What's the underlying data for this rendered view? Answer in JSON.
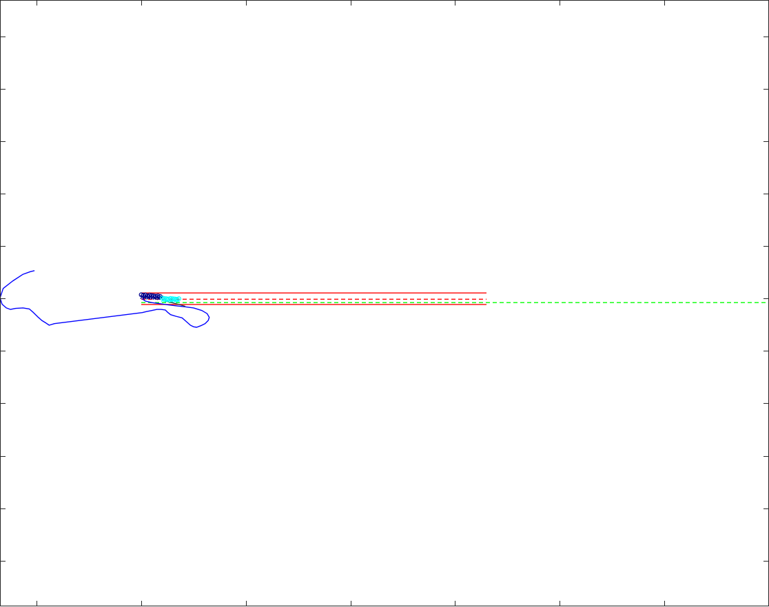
{
  "chart_data": {
    "type": "line",
    "title": "",
    "xlabel": "",
    "ylabel": "",
    "xlim": [
      0,
      7.35
    ],
    "ylim": [
      0,
      11.56
    ],
    "grid": false,
    "x_ticks": [
      0.35,
      1.35,
      2.35,
      3.35,
      4.35,
      5.35,
      6.35
    ],
    "y_ticks": [
      0.87,
      1.87,
      2.87,
      3.87,
      4.87,
      5.87,
      6.87,
      7.87,
      8.87,
      9.87,
      10.87
    ],
    "series": [
      {
        "style": "solid",
        "color": "#ff0000",
        "x": [
          1.35,
          4.65
        ],
        "y": [
          5.975,
          5.975
        ]
      },
      {
        "style": "solid",
        "color": "#ff0000",
        "x": [
          1.35,
          4.65
        ],
        "y": [
          5.755,
          5.755
        ]
      },
      {
        "style": "dashed",
        "color": "#ff0000",
        "x": [
          1.35,
          4.65
        ],
        "y": [
          5.855,
          5.855
        ]
      },
      {
        "style": "dashed",
        "color": "#00ff00",
        "x": [
          1.35,
          7.35
        ],
        "y": [
          5.79,
          5.79
        ]
      },
      {
        "style": "solid",
        "color": "#0000ff",
        "x": [
          0.33,
          0.29,
          0.22,
          0.12,
          0.03,
          0.0,
          0.02,
          0.06,
          0.1,
          0.15,
          0.22,
          0.28,
          0.32,
          0.36,
          0.4,
          0.44,
          0.47,
          0.52,
          1.36,
          1.4,
          1.45,
          1.5,
          1.54,
          1.58,
          1.6,
          1.63,
          1.68,
          1.74,
          1.78,
          1.82,
          1.85,
          1.88,
          1.92,
          1.96,
          1.99,
          2.0,
          1.98,
          1.93,
          1.85,
          1.77,
          1.68,
          1.6,
          1.53,
          1.45,
          1.39,
          1.36
        ],
        "y": [
          6.4,
          6.38,
          6.33,
          6.2,
          6.06,
          5.88,
          5.76,
          5.69,
          5.66,
          5.68,
          5.69,
          5.67,
          5.6,
          5.52,
          5.45,
          5.4,
          5.36,
          5.39,
          5.6,
          5.62,
          5.64,
          5.66,
          5.66,
          5.65,
          5.61,
          5.56,
          5.53,
          5.5,
          5.43,
          5.36,
          5.33,
          5.32,
          5.35,
          5.39,
          5.45,
          5.51,
          5.58,
          5.64,
          5.69,
          5.71,
          5.73,
          5.75,
          5.77,
          5.79,
          5.82,
          5.86
        ]
      },
      {
        "style": "solid",
        "color": "#404040",
        "x": [
          1.58,
          1.64,
          1.72,
          1.77
        ],
        "y": [
          5.82,
          5.79,
          5.75,
          5.72
        ]
      },
      {
        "style": "markers",
        "marker": "o",
        "color": "#00008b",
        "x": [
          1.35,
          1.37,
          1.39,
          1.41,
          1.43,
          1.45,
          1.47,
          1.49,
          1.51,
          1.53
        ],
        "y": [
          5.94,
          5.93,
          5.935,
          5.92,
          5.93,
          5.925,
          5.92,
          5.915,
          5.92,
          5.91
        ]
      },
      {
        "style": "markers",
        "marker": "x",
        "color": "#00008b",
        "x": [
          1.36,
          1.38,
          1.4,
          1.42,
          1.44,
          1.46,
          1.48,
          1.5,
          1.52,
          1.54
        ],
        "y": [
          5.9,
          5.895,
          5.905,
          5.89,
          5.9,
          5.895,
          5.885,
          5.89,
          5.88,
          5.885
        ]
      },
      {
        "style": "markers",
        "marker": "o",
        "color": "#00ffff",
        "x": [
          1.55,
          1.57,
          1.59,
          1.61,
          1.63,
          1.65,
          1.67,
          1.69,
          1.71
        ],
        "y": [
          5.875,
          5.87,
          5.865,
          5.86,
          5.87,
          5.865,
          5.86,
          5.855,
          5.865
        ]
      },
      {
        "style": "markers",
        "marker": "x",
        "color": "#00ffff",
        "x": [
          1.56,
          1.58,
          1.6,
          1.62,
          1.64,
          1.66,
          1.68,
          1.7
        ],
        "y": [
          5.84,
          5.845,
          5.835,
          5.84,
          5.83,
          5.84,
          5.835,
          5.83
        ]
      }
    ]
  }
}
